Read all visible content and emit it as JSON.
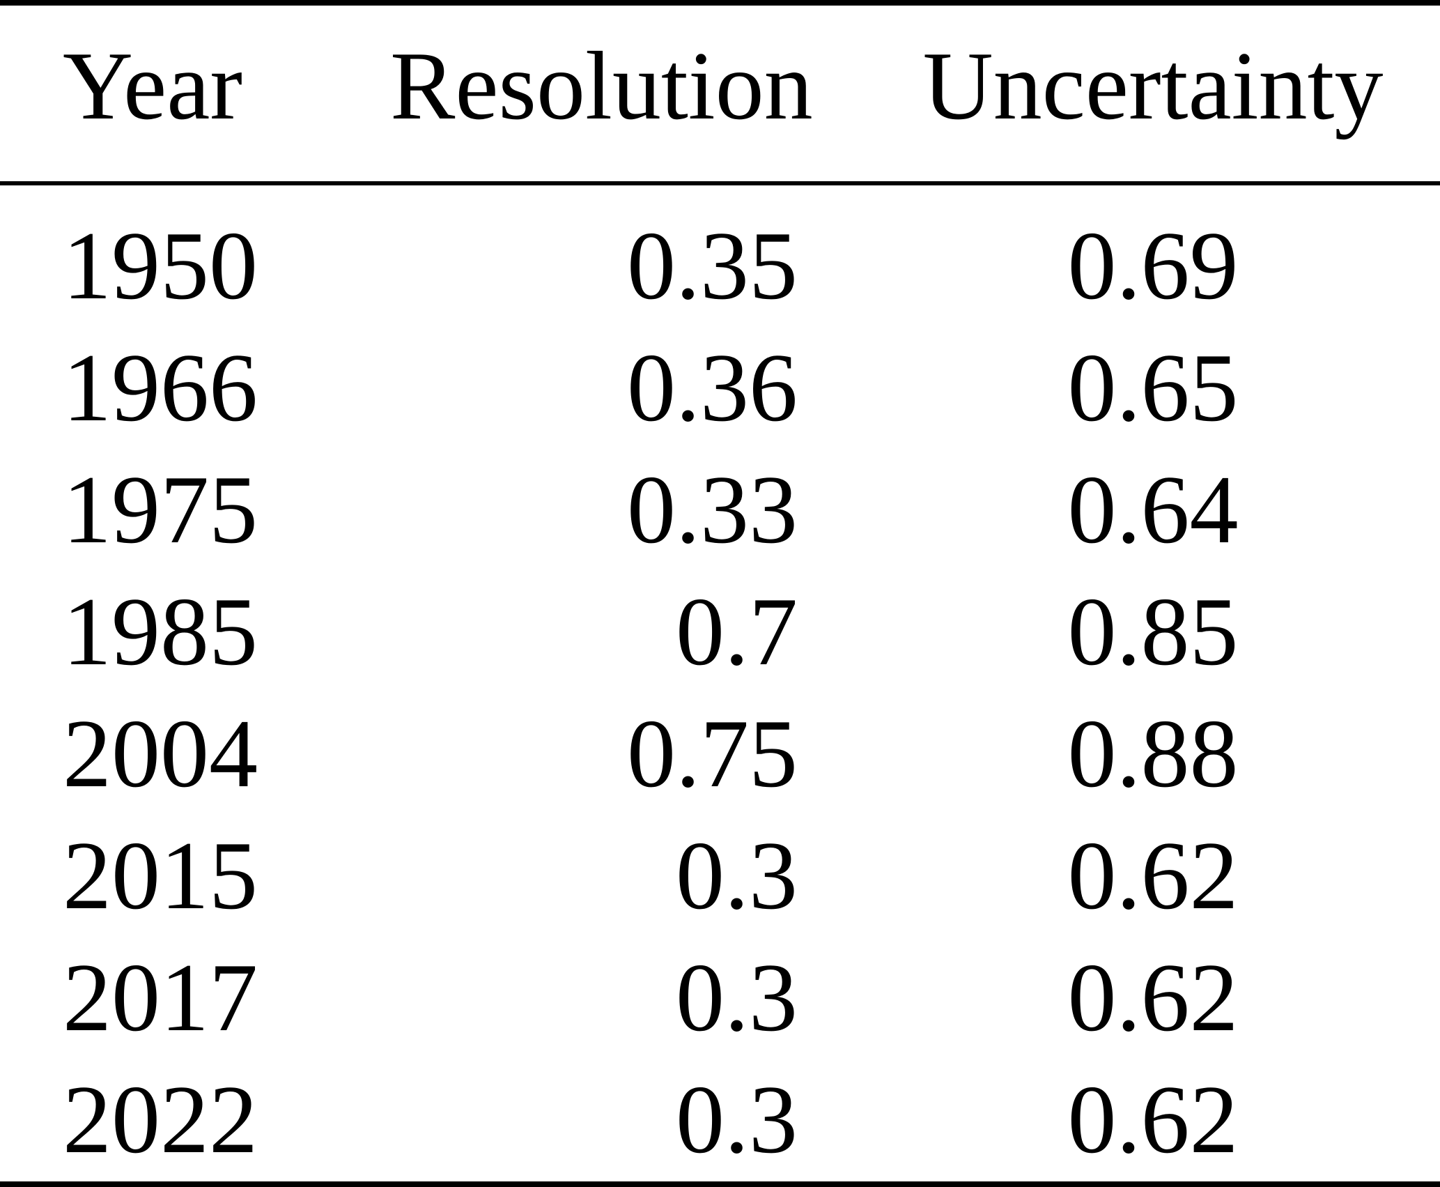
{
  "table": {
    "columns": [
      "Year",
      "Resolution",
      "Uncertainty"
    ],
    "rows": [
      [
        "1950",
        "0.35",
        "0.69"
      ],
      [
        "1966",
        "0.36",
        "0.65"
      ],
      [
        "1975",
        "0.33",
        "0.64"
      ],
      [
        "1985",
        "0.7",
        "0.85"
      ],
      [
        "2004",
        "0.75",
        "0.88"
      ],
      [
        "2015",
        "0.3",
        "0.62"
      ],
      [
        "2017",
        "0.3",
        "0.62"
      ],
      [
        "2022",
        "0.3",
        "0.62"
      ]
    ],
    "colors": {
      "text": "#000000",
      "background": "#ffffff",
      "rule": "#000000"
    }
  },
  "chart_data": {
    "type": "table",
    "title": "",
    "columns": [
      "Year",
      "Resolution",
      "Uncertainty"
    ],
    "rows": [
      [
        1950,
        0.35,
        0.69
      ],
      [
        1966,
        0.36,
        0.65
      ],
      [
        1975,
        0.33,
        0.64
      ],
      [
        1985,
        0.7,
        0.85
      ],
      [
        2004,
        0.75,
        0.88
      ],
      [
        2015,
        0.3,
        0.62
      ],
      [
        2017,
        0.3,
        0.62
      ],
      [
        2022,
        0.3,
        0.62
      ]
    ],
    "layout": {
      "style": "booktabs",
      "rules": [
        "top",
        "mid-after-header",
        "bottom"
      ],
      "column_alignment": [
        "left",
        "right",
        "center"
      ]
    }
  }
}
